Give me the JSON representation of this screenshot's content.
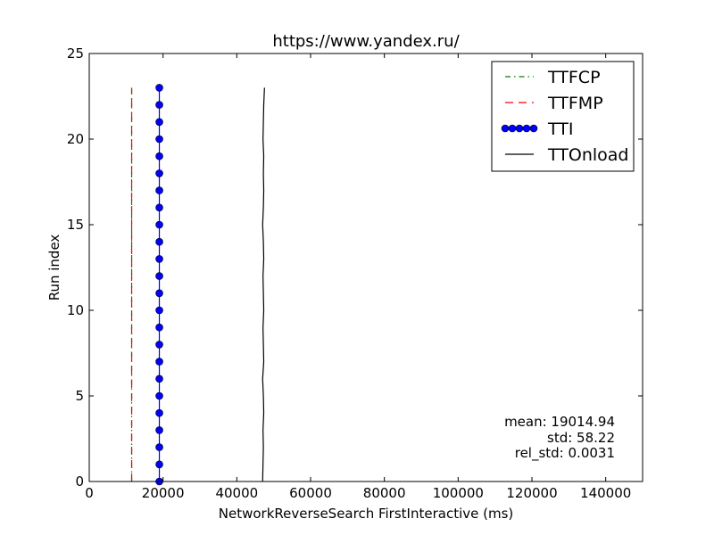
{
  "chart_data": {
    "type": "line",
    "title": "https://www.yandex.ru/",
    "xlabel": "NetworkReverseSearch FirstInteractive (ms)",
    "ylabel": "Run index",
    "xlim": [
      0,
      150000
    ],
    "ylim": [
      0,
      25
    ],
    "xticks": [
      0,
      20000,
      40000,
      60000,
      80000,
      100000,
      120000,
      140000
    ],
    "yticks": [
      0,
      5,
      10,
      15,
      20,
      25
    ],
    "grid": false,
    "legend_position": "top-right",
    "series": [
      {
        "name": "TTFCP",
        "color": "#008000",
        "style": "dash-dot",
        "marker": "none",
        "points": [
          [
            11500,
            0
          ],
          [
            11500,
            1
          ],
          [
            11500,
            2
          ],
          [
            11500,
            3
          ],
          [
            11500,
            4
          ],
          [
            11500,
            5
          ],
          [
            11500,
            6
          ],
          [
            11500,
            7
          ],
          [
            11500,
            8
          ],
          [
            11500,
            9
          ],
          [
            11500,
            10
          ],
          [
            11500,
            11
          ],
          [
            11500,
            12
          ],
          [
            11500,
            13
          ],
          [
            11500,
            14
          ],
          [
            11500,
            15
          ],
          [
            11500,
            16
          ],
          [
            11500,
            17
          ],
          [
            11500,
            18
          ],
          [
            11500,
            19
          ],
          [
            11500,
            20
          ],
          [
            11500,
            21
          ],
          [
            11500,
            22
          ],
          [
            11500,
            23
          ]
        ]
      },
      {
        "name": "TTFMP",
        "color": "#ff0000",
        "style": "dashed",
        "marker": "none",
        "points": [
          [
            11500,
            0
          ],
          [
            11500,
            1
          ],
          [
            11500,
            2
          ],
          [
            11500,
            3
          ],
          [
            11500,
            4
          ],
          [
            11500,
            5
          ],
          [
            11500,
            6
          ],
          [
            11500,
            7
          ],
          [
            11500,
            8
          ],
          [
            11500,
            9
          ],
          [
            11500,
            10
          ],
          [
            11500,
            11
          ],
          [
            11500,
            12
          ],
          [
            11500,
            13
          ],
          [
            11500,
            14
          ],
          [
            11500,
            15
          ],
          [
            11500,
            16
          ],
          [
            11500,
            17
          ],
          [
            11500,
            18
          ],
          [
            11500,
            19
          ],
          [
            11500,
            20
          ],
          [
            11500,
            21
          ],
          [
            11500,
            22
          ],
          [
            11500,
            23
          ]
        ]
      },
      {
        "name": "TTI",
        "color": "#0000ff",
        "style": "solid",
        "marker": "circle",
        "points": [
          [
            19000,
            0
          ],
          [
            19000,
            1
          ],
          [
            19000,
            2
          ],
          [
            19000,
            3
          ],
          [
            19000,
            4
          ],
          [
            19000,
            5
          ],
          [
            19000,
            6
          ],
          [
            19000,
            7
          ],
          [
            19000,
            8
          ],
          [
            19000,
            9
          ],
          [
            19000,
            10
          ],
          [
            19000,
            11
          ],
          [
            19000,
            12
          ],
          [
            19000,
            13
          ],
          [
            19000,
            14
          ],
          [
            19000,
            15
          ],
          [
            19000,
            16
          ],
          [
            19000,
            17
          ],
          [
            19000,
            18
          ],
          [
            19000,
            19
          ],
          [
            19000,
            20
          ],
          [
            19000,
            21
          ],
          [
            19000,
            22
          ],
          [
            19000,
            23
          ]
        ]
      },
      {
        "name": "TTOnload",
        "color": "#000000",
        "style": "solid",
        "marker": "none",
        "points": [
          [
            47000,
            0
          ],
          [
            47100,
            1
          ],
          [
            47200,
            2
          ],
          [
            47100,
            3
          ],
          [
            47300,
            4
          ],
          [
            47200,
            5
          ],
          [
            47000,
            6
          ],
          [
            47300,
            7
          ],
          [
            47200,
            8
          ],
          [
            47100,
            9
          ],
          [
            47300,
            10
          ],
          [
            47200,
            11
          ],
          [
            47100,
            12
          ],
          [
            47300,
            13
          ],
          [
            47200,
            14
          ],
          [
            47000,
            15
          ],
          [
            47200,
            16
          ],
          [
            47300,
            17
          ],
          [
            47200,
            18
          ],
          [
            47300,
            19
          ],
          [
            47100,
            20
          ],
          [
            47200,
            21
          ],
          [
            47300,
            22
          ],
          [
            47500,
            23
          ]
        ]
      }
    ],
    "annotations": {
      "mean": "mean: 19014.94",
      "std": "std: 58.22",
      "rel_std": "rel_std: 0.0031"
    }
  }
}
